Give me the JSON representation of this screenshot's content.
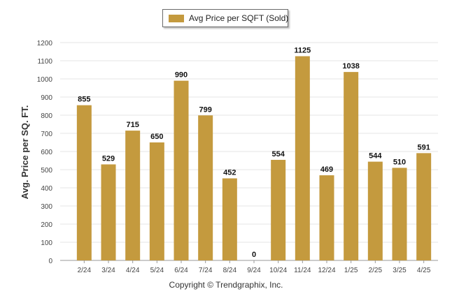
{
  "chart_data": {
    "type": "bar",
    "categories": [
      "2/24",
      "3/24",
      "4/24",
      "5/24",
      "6/24",
      "7/24",
      "8/24",
      "9/24",
      "10/24",
      "11/24",
      "12/24",
      "1/25",
      "2/25",
      "3/25",
      "4/25"
    ],
    "series": [
      {
        "name": "Avg Price per SQFT (Sold)",
        "values": [
          855,
          529,
          715,
          650,
          990,
          799,
          452,
          0,
          554,
          1125,
          469,
          1038,
          544,
          510,
          591
        ]
      }
    ],
    "data_labels": [
      "855",
      "529",
      "715",
      "650",
      "990",
      "799",
      "452",
      "0",
      "554",
      "1125",
      "469",
      "1038",
      "544",
      "510",
      "591"
    ],
    "ylabel": "Avg. Price per SQ. FT.",
    "xlabel": "",
    "ylim": [
      0,
      1200
    ],
    "yticks": [
      0,
      100,
      200,
      300,
      400,
      500,
      600,
      700,
      800,
      900,
      1000,
      1100,
      1200
    ],
    "grid": true,
    "legend_position": "top-center",
    "colors": {
      "bar": "#c49a3e",
      "grid": "#e6e6e6",
      "axis": "#999999"
    }
  },
  "legend": {
    "label": "Avg Price per SQFT (Sold)"
  },
  "footer": {
    "text": "Copyright © Trendgraphix, Inc."
  }
}
